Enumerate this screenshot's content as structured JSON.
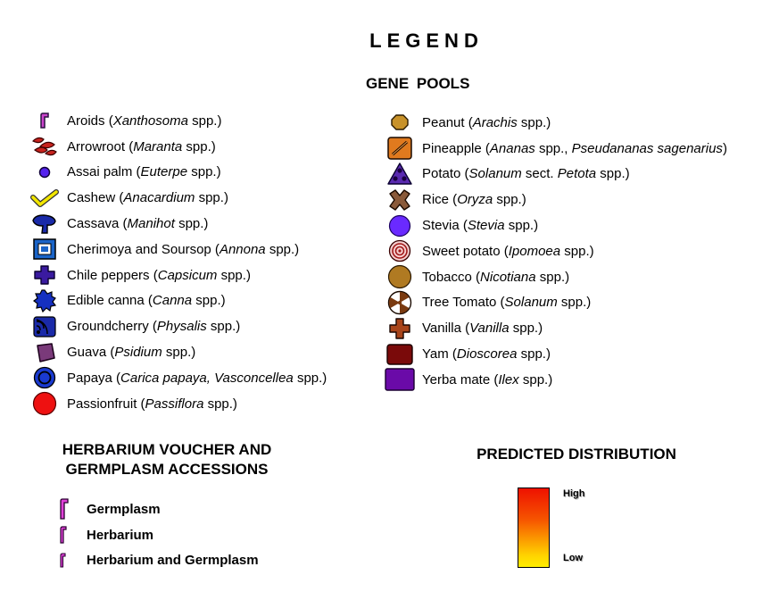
{
  "legend_title": "LEGEND",
  "gene_pools_title": "GENE  POOLS",
  "left_column": [
    {
      "name": "Aroids",
      "genus": "Xanthosoma",
      "suffix": " spp.)",
      "icon": "aroids-hook-icon"
    },
    {
      "name": "Arrowroot",
      "genus": "Maranta",
      "suffix": " spp.)",
      "icon": "arrowroot-leaves-icon"
    },
    {
      "name": "Assai palm",
      "genus": "Euterpe",
      "suffix": " spp.)",
      "icon": "assai-dot-icon"
    },
    {
      "name": "Cashew",
      "genus": "Anacardium",
      "suffix": " spp.)",
      "icon": "cashew-check-icon"
    },
    {
      "name": "Cassava",
      "genus": "Manihot",
      "suffix": " spp.)",
      "icon": "cassava-drop-icon"
    },
    {
      "name": "Cherimoya and Soursop",
      "genus": "Annona",
      "suffix": " spp.)",
      "icon": "cherimoya-square-icon"
    },
    {
      "name": "Chile peppers",
      "genus": "Capsicum",
      "suffix": " spp.)",
      "icon": "chile-cross-icon"
    },
    {
      "name": "Edible canna",
      "genus": "Canna",
      "suffix": " spp.)",
      "icon": "canna-gear-icon"
    },
    {
      "name": "Groundcherry",
      "genus": "Physalis",
      "suffix": " spp.)",
      "icon": "groundcherry-waves-icon"
    },
    {
      "name": "Guava",
      "genus": "Psidium",
      "suffix": " spp.)",
      "icon": "guava-diamond-icon"
    },
    {
      "name": "Papaya",
      "genus": "Carica papaya, Vasconcellea",
      "suffix": " spp.)",
      "icon": "papaya-ring-icon"
    },
    {
      "name": "Passionfruit",
      "genus": "Passiflora",
      "suffix": " spp.)",
      "icon": "passionfruit-circle-icon"
    }
  ],
  "right_column": [
    {
      "name": "Peanut",
      "genus": "Arachis",
      "suffix": " spp.)",
      "icon": "peanut-octagon-icon"
    },
    {
      "name": "Pineapple",
      "genus": "Ananas",
      "suffix": " spp., ",
      "genus2": "Pseudananas sagenarius",
      "suffix2": ")",
      "icon": "pineapple-slash-icon"
    },
    {
      "name": "Potato",
      "genus": "Solanum",
      "suffix": " sect. ",
      "genus2": "Petota",
      "suffix2": " spp.)",
      "icon": "potato-triangle-icon"
    },
    {
      "name": "Rice",
      "genus": "Oryza",
      "suffix": " spp.)",
      "icon": "rice-x-icon"
    },
    {
      "name": "Stevia",
      "genus": "Stevia",
      "suffix": " spp.)",
      "icon": "stevia-circle-icon"
    },
    {
      "name": "Sweet potato",
      "genus": "Ipomoea",
      "suffix": " spp.)",
      "icon": "sweet-potato-target-icon"
    },
    {
      "name": "Tobacco",
      "genus": "Nicotiana",
      "suffix": " spp.)",
      "icon": "tobacco-circle-icon"
    },
    {
      "name": "Tree Tomato",
      "genus": "Solanum",
      "suffix": " spp.)",
      "icon": "tree-tomato-radiation-icon"
    },
    {
      "name": "Vanilla",
      "genus": "Vanilla",
      "suffix": " spp.)",
      "icon": "vanilla-cross-icon"
    },
    {
      "name": "Yam",
      "genus": "Dioscorea",
      "suffix": " spp.)",
      "icon": "yam-rect-icon"
    },
    {
      "name": "Yerba mate",
      "genus": "Ilex",
      "suffix": " spp.)",
      "icon": "yerba-mate-rect-icon"
    }
  ],
  "voucher": {
    "title_line1": "HERBARIUM VOUCHER AND",
    "title_line2": "GERMPLASM ACCESSIONS",
    "items": [
      {
        "label": "Germplasm",
        "icon": "germplasm-hook-icon"
      },
      {
        "label": "Herbarium",
        "icon": "herbarium-hook-icon"
      },
      {
        "label": "Herbarium and Germplasm",
        "icon": "herbarium-germplasm-hook-icon"
      }
    ]
  },
  "distribution": {
    "title": "PREDICTED DISTRIBUTION",
    "high_label": "High",
    "low_label": "Low",
    "high_color": "#ee1100",
    "low_color": "#ffee00"
  }
}
